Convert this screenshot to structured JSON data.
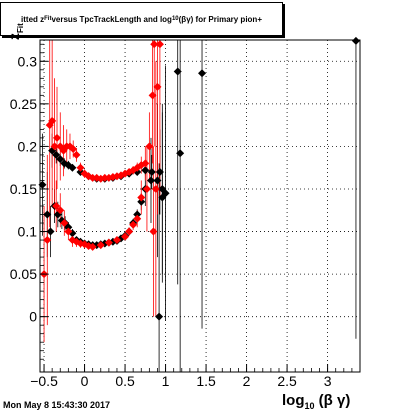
{
  "header": {
    "title_parts": [
      "itted  z",
      "Fit",
      " versus TpcTrackLength and log",
      "10",
      "(βγ) for Primary pion+"
    ]
  },
  "footer": {
    "timestamp": "Mon May  8 15:43:30 2017"
  },
  "chart_data": {
    "type": "scatter",
    "title": "itted z_Fit versus TpcTrackLength and log10(βγ) for Primary pion+",
    "xlabel_parts": [
      "log",
      "10",
      " (β γ)"
    ],
    "ylabel_parts": [
      "z",
      "Fit"
    ],
    "xlim": [
      -0.55,
      3.4
    ],
    "ylim": [
      -0.065,
      0.325
    ],
    "grid": true,
    "x_ticks": [
      -0.5,
      0,
      0.5,
      1,
      1.5,
      2,
      2.5,
      3
    ],
    "x_tick_labels": [
      "−0.5",
      "0",
      "0.5",
      "1",
      "1.5",
      "2",
      "2.5",
      "3"
    ],
    "y_ticks": [
      0,
      0.05,
      0.1,
      0.15,
      0.2,
      0.25,
      0.3
    ],
    "y_tick_labels": [
      "0",
      "0.05",
      "0.1",
      "0.15",
      "0.2",
      "0.25",
      "0.3"
    ],
    "colors": {
      "black": "#000000",
      "red": "#ff0000"
    },
    "series": [
      {
        "color": "#000000",
        "points": [
          {
            "x": -0.52,
            "y": 0.155,
            "e": 0.06
          },
          {
            "x": -0.46,
            "y": 0.12,
            "e": 0.05
          },
          {
            "x": -0.42,
            "y": 0.1,
            "e": 0.03
          },
          {
            "x": -0.37,
            "y": 0.13,
            "e": 0.02
          },
          {
            "x": -0.33,
            "y": 0.12,
            "e": 0.015
          },
          {
            "x": -0.28,
            "y": 0.113,
            "e": 0.01
          },
          {
            "x": -0.24,
            "y": 0.11,
            "e": 0.008
          },
          {
            "x": -0.2,
            "y": 0.105,
            "e": 0.006
          },
          {
            "x": -0.15,
            "y": 0.098,
            "e": 0.005
          },
          {
            "x": -0.1,
            "y": 0.09,
            "e": 0.004
          },
          {
            "x": -0.05,
            "y": 0.088,
            "e": 0.004
          },
          {
            "x": 0.0,
            "y": 0.086,
            "e": 0.003
          },
          {
            "x": 0.05,
            "y": 0.085,
            "e": 0.003
          },
          {
            "x": 0.1,
            "y": 0.084,
            "e": 0.003
          },
          {
            "x": 0.15,
            "y": 0.084,
            "e": 0.003
          },
          {
            "x": 0.2,
            "y": 0.085,
            "e": 0.003
          },
          {
            "x": 0.25,
            "y": 0.086,
            "e": 0.003
          },
          {
            "x": 0.3,
            "y": 0.087,
            "e": 0.003
          },
          {
            "x": 0.35,
            "y": 0.088,
            "e": 0.003
          },
          {
            "x": 0.4,
            "y": 0.089,
            "e": 0.003
          },
          {
            "x": 0.45,
            "y": 0.092,
            "e": 0.003
          },
          {
            "x": 0.5,
            "y": 0.095,
            "e": 0.004
          },
          {
            "x": 0.55,
            "y": 0.1,
            "e": 0.004
          },
          {
            "x": 0.6,
            "y": 0.11,
            "e": 0.005
          },
          {
            "x": 0.65,
            "y": 0.12,
            "e": 0.006
          },
          {
            "x": 0.7,
            "y": 0.135,
            "e": 0.01
          },
          {
            "x": 0.75,
            "y": 0.15,
            "e": 0.02
          },
          {
            "x": 0.82,
            "y": 0.16,
            "e": 0.05
          },
          {
            "x": 0.9,
            "y": 0.16,
            "e": 0.09
          },
          {
            "x": 0.96,
            "y": 0.15,
            "e": 0.1
          },
          {
            "x": -0.4,
            "y": 0.195,
            "e": 0.02
          },
          {
            "x": -0.35,
            "y": 0.19,
            "e": 0.01
          },
          {
            "x": -0.3,
            "y": 0.185,
            "e": 0.008
          },
          {
            "x": -0.25,
            "y": 0.18,
            "e": 0.006
          },
          {
            "x": -0.2,
            "y": 0.178,
            "e": 0.005
          },
          {
            "x": -0.15,
            "y": 0.175,
            "e": 0.004
          },
          {
            "x": -0.05,
            "y": 0.17,
            "e": 0.004
          },
          {
            "x": 0.05,
            "y": 0.165,
            "e": 0.004
          },
          {
            "x": 0.15,
            "y": 0.162,
            "e": 0.003
          },
          {
            "x": 0.25,
            "y": 0.162,
            "e": 0.003
          },
          {
            "x": 0.35,
            "y": 0.163,
            "e": 0.003
          },
          {
            "x": 0.45,
            "y": 0.165,
            "e": 0.003
          },
          {
            "x": 0.55,
            "y": 0.168,
            "e": 0.003
          },
          {
            "x": 0.65,
            "y": 0.17,
            "e": 0.004
          },
          {
            "x": 0.75,
            "y": 0.172,
            "e": 0.006
          },
          {
            "x": 0.83,
            "y": 0.17,
            "e": 0.02
          },
          {
            "x": 0.93,
            "y": 0.17,
            "e": 0.05
          },
          {
            "x": 0.96,
            "y": 0.14,
            "e": 0.1
          },
          {
            "x": 0.92,
            "y": 0.0,
            "e": 0.18
          },
          {
            "x": 1.0,
            "y": 0.145,
            "e": 0.15
          },
          {
            "x": 1.15,
            "y": 0.288,
            "e": 0.25
          },
          {
            "x": 1.18,
            "y": 0.192,
            "e": 0.3
          },
          {
            "x": 1.45,
            "y": 0.286,
            "e": 0.3
          },
          {
            "x": 3.35,
            "y": 0.324,
            "e": 0.35
          }
        ]
      },
      {
        "color": "#ff0000",
        "points": [
          {
            "x": -0.5,
            "y": 0.05,
            "e": 0.08
          },
          {
            "x": -0.46,
            "y": 0.09,
            "e": 0.1
          },
          {
            "x": -0.43,
            "y": 0.225,
            "e": 0.12
          },
          {
            "x": -0.4,
            "y": 0.23,
            "e": 0.1
          },
          {
            "x": -0.37,
            "y": 0.2,
            "e": 0.08
          },
          {
            "x": -0.34,
            "y": 0.21,
            "e": 0.06
          },
          {
            "x": -0.3,
            "y": 0.2,
            "e": 0.04
          },
          {
            "x": -0.26,
            "y": 0.195,
            "e": 0.03
          },
          {
            "x": -0.22,
            "y": 0.2,
            "e": 0.02
          },
          {
            "x": -0.18,
            "y": 0.2,
            "e": 0.015
          },
          {
            "x": -0.14,
            "y": 0.197,
            "e": 0.01
          },
          {
            "x": -0.1,
            "y": 0.19,
            "e": 0.008
          },
          {
            "x": -0.05,
            "y": 0.175,
            "e": 0.006
          },
          {
            "x": 0.0,
            "y": 0.168,
            "e": 0.005
          },
          {
            "x": 0.05,
            "y": 0.165,
            "e": 0.004
          },
          {
            "x": 0.1,
            "y": 0.163,
            "e": 0.004
          },
          {
            "x": 0.15,
            "y": 0.163,
            "e": 0.003
          },
          {
            "x": 0.2,
            "y": 0.162,
            "e": 0.003
          },
          {
            "x": 0.25,
            "y": 0.163,
            "e": 0.003
          },
          {
            "x": 0.3,
            "y": 0.163,
            "e": 0.003
          },
          {
            "x": 0.35,
            "y": 0.164,
            "e": 0.003
          },
          {
            "x": 0.4,
            "y": 0.165,
            "e": 0.003
          },
          {
            "x": 0.45,
            "y": 0.166,
            "e": 0.003
          },
          {
            "x": 0.5,
            "y": 0.168,
            "e": 0.004
          },
          {
            "x": 0.55,
            "y": 0.17,
            "e": 0.004
          },
          {
            "x": 0.6,
            "y": 0.172,
            "e": 0.005
          },
          {
            "x": 0.65,
            "y": 0.175,
            "e": 0.006
          },
          {
            "x": 0.7,
            "y": 0.178,
            "e": 0.01
          },
          {
            "x": 0.75,
            "y": 0.18,
            "e": 0.02
          },
          {
            "x": 0.8,
            "y": 0.2,
            "e": 0.04
          },
          {
            "x": 0.84,
            "y": 0.26,
            "e": 0.08
          },
          {
            "x": 0.86,
            "y": 0.32,
            "e": 0.12
          },
          {
            "x": 0.9,
            "y": 0.27,
            "e": 0.15
          },
          {
            "x": 0.93,
            "y": 0.32,
            "e": 0.18
          },
          {
            "x": -0.35,
            "y": 0.13,
            "e": 0.03
          },
          {
            "x": -0.3,
            "y": 0.125,
            "e": 0.02
          },
          {
            "x": -0.25,
            "y": 0.11,
            "e": 0.015
          },
          {
            "x": -0.2,
            "y": 0.1,
            "e": 0.01
          },
          {
            "x": -0.15,
            "y": 0.09,
            "e": 0.008
          },
          {
            "x": -0.1,
            "y": 0.088,
            "e": 0.006
          },
          {
            "x": -0.05,
            "y": 0.086,
            "e": 0.005
          },
          {
            "x": 0.0,
            "y": 0.085,
            "e": 0.004
          },
          {
            "x": 0.05,
            "y": 0.083,
            "e": 0.004
          },
          {
            "x": 0.1,
            "y": 0.082,
            "e": 0.003
          },
          {
            "x": 0.2,
            "y": 0.084,
            "e": 0.003
          },
          {
            "x": 0.3,
            "y": 0.087,
            "e": 0.003
          },
          {
            "x": 0.4,
            "y": 0.09,
            "e": 0.003
          },
          {
            "x": 0.5,
            "y": 0.094,
            "e": 0.004
          },
          {
            "x": 0.55,
            "y": 0.1,
            "e": 0.005
          },
          {
            "x": 0.6,
            "y": 0.108,
            "e": 0.006
          },
          {
            "x": 0.65,
            "y": 0.115,
            "e": 0.01
          },
          {
            "x": 0.7,
            "y": 0.14,
            "e": 0.02
          },
          {
            "x": 0.77,
            "y": 0.15,
            "e": 0.05
          },
          {
            "x": 0.85,
            "y": 0.1,
            "e": 0.1
          },
          {
            "x": 0.88,
            "y": 0.15,
            "e": 0.15
          }
        ]
      }
    ]
  }
}
